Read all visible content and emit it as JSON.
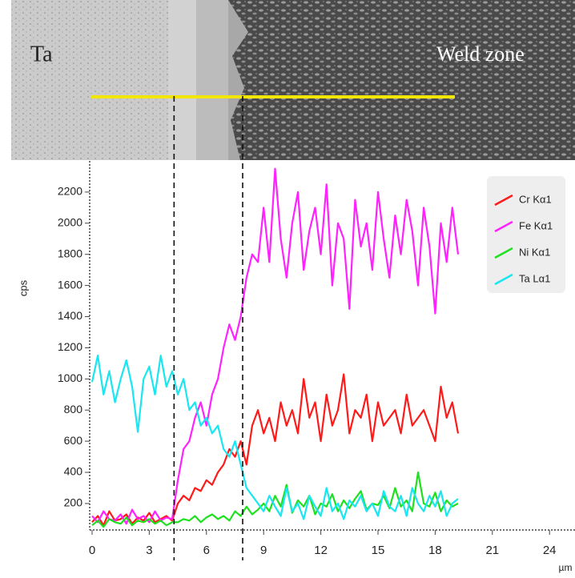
{
  "image_labels": {
    "left": "Ta",
    "right": "Weld zone"
  },
  "chart_data": {
    "type": "line",
    "y_label": "cps",
    "x_label": "µm",
    "x": [
      0,
      0.3,
      0.6,
      0.9,
      1.2,
      1.5,
      1.8,
      2.1,
      2.4,
      2.7,
      3,
      3.3,
      3.6,
      3.9,
      4.2,
      4.5,
      4.8,
      5.1,
      5.4,
      5.7,
      6,
      6.3,
      6.6,
      6.9,
      7.2,
      7.5,
      7.8,
      8.1,
      8.4,
      8.7,
      9,
      9.3,
      9.6,
      9.9,
      10.2,
      10.5,
      10.8,
      11.1,
      11.4,
      11.7,
      12,
      12.3,
      12.6,
      12.9,
      13.2,
      13.5,
      13.8,
      14.1,
      14.4,
      14.7,
      15,
      15.3,
      15.6,
      15.9,
      16.2,
      16.5,
      16.8,
      17.1,
      17.4,
      17.7,
      18,
      18.3,
      18.6,
      18.9,
      19.2
    ],
    "series": [
      {
        "name": "Cr Kα1",
        "color": "#ff1a1a",
        "values": [
          80,
          120,
          60,
          150,
          90,
          100,
          130,
          70,
          110,
          90,
          140,
          80,
          100,
          120,
          90,
          200,
          250,
          220,
          300,
          280,
          350,
          320,
          400,
          450,
          550,
          500,
          600,
          450,
          700,
          800,
          650,
          750,
          600,
          850,
          700,
          800,
          650,
          1000,
          750,
          850,
          600,
          900,
          700,
          800,
          1030,
          650,
          800,
          750,
          900,
          600,
          850,
          700,
          750,
          800,
          650,
          900,
          700,
          750,
          800,
          700,
          600,
          950,
          750,
          850,
          650
        ]
      },
      {
        "name": "Fe Kα1",
        "color": "#ff22ff",
        "values": [
          120,
          80,
          150,
          100,
          90,
          130,
          70,
          160,
          100,
          120,
          80,
          150,
          90,
          110,
          100,
          350,
          550,
          600,
          750,
          850,
          700,
          900,
          1000,
          1200,
          1350,
          1250,
          1400,
          1650,
          1800,
          1750,
          2100,
          1750,
          2350,
          1900,
          1650,
          2000,
          2200,
          1700,
          1950,
          2100,
          1800,
          2250,
          1600,
          2000,
          1900,
          1450,
          2150,
          1850,
          2000,
          1700,
          2200,
          1900,
          1650,
          2050,
          1800,
          2150,
          1950,
          1600,
          2100,
          1850,
          1420,
          2000,
          1750,
          2100,
          1800
        ]
      },
      {
        "name": "Ni Kα1",
        "color": "#1fe01f",
        "values": [
          60,
          90,
          50,
          100,
          80,
          70,
          110,
          60,
          90,
          80,
          100,
          70,
          90,
          60,
          80,
          80,
          100,
          90,
          120,
          80,
          110,
          130,
          100,
          120,
          90,
          150,
          120,
          180,
          130,
          160,
          200,
          150,
          250,
          180,
          320,
          140,
          220,
          180,
          250,
          130,
          200,
          180,
          260,
          150,
          220,
          170,
          230,
          280,
          160,
          200,
          190,
          250,
          170,
          300,
          180,
          220,
          150,
          400,
          200,
          180,
          270,
          150,
          220,
          180,
          200
        ]
      },
      {
        "name": "Ta Lα1",
        "color": "#19e6f0",
        "values": [
          980,
          1150,
          900,
          1050,
          850,
          1000,
          1120,
          950,
          660,
          1000,
          1080,
          900,
          1150,
          950,
          1050,
          900,
          1000,
          800,
          850,
          700,
          750,
          650,
          700,
          550,
          500,
          600,
          450,
          300,
          250,
          200,
          150,
          250,
          180,
          120,
          300,
          150,
          200,
          100,
          250,
          180,
          120,
          300,
          150,
          200,
          100,
          220,
          180,
          250,
          150,
          200,
          120,
          280,
          180,
          150,
          250,
          120,
          300,
          200,
          150,
          250,
          180,
          280,
          120,
          200,
          230
        ]
      }
    ],
    "xlim": [
      0,
      25
    ],
    "xticks": [
      0,
      3,
      6,
      9,
      12,
      15,
      18,
      21,
      24
    ],
    "ylim": [
      30,
      2400
    ],
    "yticks": [
      200,
      400,
      600,
      800,
      1000,
      1200,
      1400,
      1600,
      1800,
      2000,
      2200
    ],
    "dashed_lines": [
      4.3,
      7.9
    ],
    "legend": "top-right"
  }
}
